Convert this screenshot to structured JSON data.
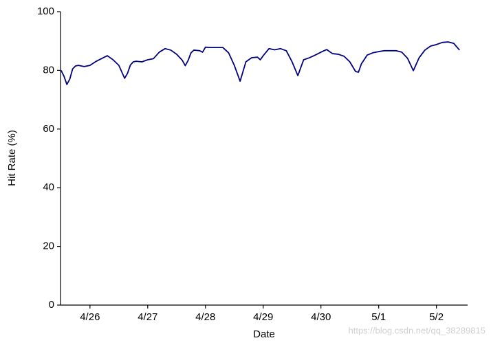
{
  "chart_data": {
    "type": "line",
    "x_label": "Date",
    "y_label": "Hit Rate (%)",
    "watermark": "https://blog.csdn.net/qq_38289815",
    "x": [
      -0.5,
      -0.45,
      -0.4,
      -0.35,
      -0.3,
      -0.25,
      -0.2,
      -0.1,
      0,
      0.1,
      0.2,
      0.3,
      0.4,
      0.5,
      0.6,
      0.65,
      0.7,
      0.75,
      0.8,
      0.9,
      1.0,
      1.1,
      1.2,
      1.3,
      1.4,
      1.5,
      1.6,
      1.65,
      1.7,
      1.75,
      1.8,
      1.9,
      1.95,
      2.0,
      2.1,
      2.2,
      2.3,
      2.4,
      2.5,
      2.6,
      2.7,
      2.8,
      2.9,
      2.95,
      3.0,
      3.1,
      3.2,
      3.3,
      3.4,
      3.5,
      3.6,
      3.7,
      3.8,
      3.9,
      4.0,
      4.1,
      4.2,
      4.3,
      4.4,
      4.5,
      4.6,
      4.65,
      4.7,
      4.8,
      4.9,
      5.0,
      5.1,
      5.2,
      5.3,
      5.4,
      5.5,
      5.6,
      5.7,
      5.8,
      5.9,
      6.0,
      6.1,
      6.2,
      6.3,
      6.4
    ],
    "series": [
      {
        "name": "Hit Rate",
        "color": "#000080",
        "values": [
          80,
          78,
          75.2,
          77,
          80.5,
          81.5,
          81.7,
          81.3,
          81.7,
          83,
          84,
          85,
          83.6,
          81.7,
          77.3,
          79,
          81.8,
          82.9,
          83.1,
          82.9,
          83.6,
          84,
          86.2,
          87.4,
          86.9,
          85.5,
          83.4,
          81.6,
          83.4,
          86,
          86.9,
          86.7,
          86.2,
          87.9,
          87.8,
          87.8,
          87.8,
          86,
          81.7,
          76.3,
          82.9,
          84.3,
          84.5,
          83.6,
          85,
          87.4,
          87,
          87.4,
          86.7,
          82.9,
          78.2,
          83.6,
          84.3,
          85.2,
          86.2,
          87.1,
          85.7,
          85.5,
          84.8,
          82.9,
          79.6,
          79.4,
          82.2,
          85.2,
          86,
          86.4,
          86.7,
          86.7,
          86.7,
          86.2,
          84.1,
          79.9,
          84.3,
          86.9,
          88.3,
          88.8,
          89.5,
          89.7,
          89.2,
          86.9
        ]
      }
    ],
    "xlim": [
      -0.51,
      6.54
    ],
    "xticks": [
      {
        "value": 0,
        "label": "4/26"
      },
      {
        "value": 1,
        "label": "4/27"
      },
      {
        "value": 2,
        "label": "4/28"
      },
      {
        "value": 3,
        "label": "4/29"
      },
      {
        "value": 4,
        "label": "4/30"
      },
      {
        "value": 5,
        "label": "5/1"
      },
      {
        "value": 6,
        "label": "5/2"
      }
    ],
    "ylim": [
      0,
      100
    ],
    "yticks": [
      0,
      20,
      40,
      60,
      80,
      100
    ],
    "grid": false
  }
}
